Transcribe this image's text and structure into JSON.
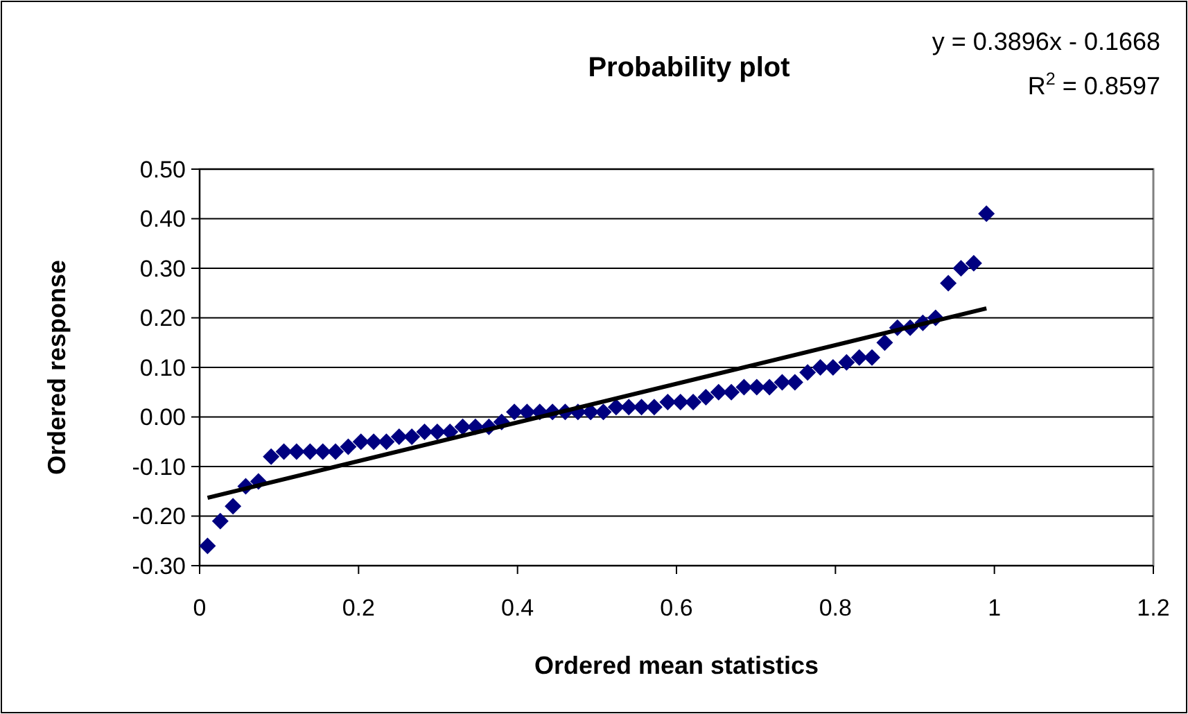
{
  "chart_data": {
    "type": "scatter",
    "title": "Probability plot",
    "xlabel": "Ordered mean statistics",
    "ylabel": "Ordered response",
    "annotations": [
      "y = 0.3896x - 0.1668",
      "R$^{2}$ = 0.8597"
    ],
    "xlim": [
      0,
      1.2
    ],
    "xticks": [
      0,
      0.2,
      0.4,
      0.6,
      0.8,
      1,
      1.2
    ],
    "ylim": [
      -0.3,
      0.5
    ],
    "yticks": [
      {
        "value": -0.3,
        "label": "-0.30"
      },
      {
        "value": -0.2,
        "label": "-0.20"
      },
      {
        "value": -0.1,
        "label": "-0.10"
      },
      {
        "value": 0,
        "label": "0.00"
      },
      {
        "value": 0.1,
        "label": "0.10"
      },
      {
        "value": 0.2,
        "label": "0.20"
      },
      {
        "value": 0.3,
        "label": "0.30"
      },
      {
        "value": 0.4,
        "label": "0.40"
      },
      {
        "value": 0.5,
        "label": "0.50"
      }
    ],
    "grid": "y",
    "series": [
      {
        "marker": "diamond",
        "color": "#000080",
        "x": [
          0.01,
          0.026,
          0.042,
          0.058,
          0.074,
          0.09,
          0.106,
          0.122,
          0.139,
          0.155,
          0.171,
          0.187,
          0.203,
          0.219,
          0.235,
          0.251,
          0.267,
          0.283,
          0.299,
          0.315,
          0.331,
          0.347,
          0.364,
          0.38,
          0.396,
          0.412,
          0.428,
          0.444,
          0.46,
          0.476,
          0.492,
          0.508,
          0.524,
          0.54,
          0.556,
          0.572,
          0.589,
          0.605,
          0.621,
          0.637,
          0.653,
          0.669,
          0.685,
          0.701,
          0.717,
          0.733,
          0.749,
          0.765,
          0.781,
          0.797,
          0.814,
          0.83,
          0.846,
          0.862,
          0.878,
          0.894,
          0.91,
          0.926,
          0.942,
          0.958,
          0.974,
          0.99
        ],
        "values": [
          -0.26,
          -0.21,
          -0.18,
          -0.14,
          -0.13,
          -0.08,
          -0.07,
          -0.07,
          -0.07,
          -0.07,
          -0.07,
          -0.06,
          -0.05,
          -0.05,
          -0.05,
          -0.04,
          -0.04,
          -0.03,
          -0.03,
          -0.03,
          -0.02,
          -0.02,
          -0.02,
          -0.01,
          0.01,
          0.01,
          0.01,
          0.01,
          0.01,
          0.01,
          0.01,
          0.01,
          0.02,
          0.02,
          0.02,
          0.02,
          0.03,
          0.03,
          0.03,
          0.04,
          0.05,
          0.05,
          0.06,
          0.06,
          0.06,
          0.07,
          0.07,
          0.09,
          0.1,
          0.1,
          0.11,
          0.12,
          0.12,
          0.15,
          0.18,
          0.18,
          0.19,
          0.2,
          0.27,
          0.3,
          0.31,
          0.41
        ]
      },
      {
        "type": "line",
        "color": "#000000",
        "x": [
          0.01,
          0.99
        ],
        "values": [
          -0.163,
          0.219
        ]
      }
    ]
  }
}
